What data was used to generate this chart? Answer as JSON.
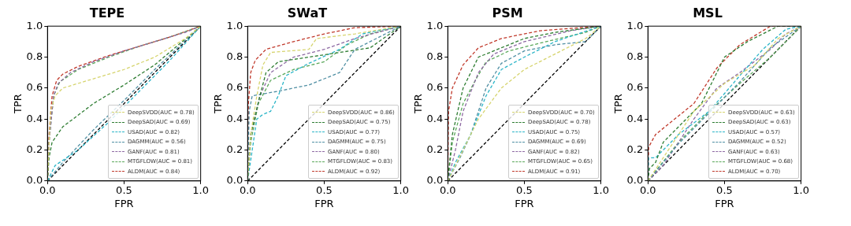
{
  "chart_data": [
    {
      "type": "line",
      "title": "TEPE",
      "xlabel": "FPR",
      "ylabel": "TPR",
      "xlim": [
        0,
        1
      ],
      "ylim": [
        0,
        1
      ],
      "xticks": [
        {
          "value": 0,
          "label": "0.0"
        },
        {
          "value": 0.5,
          "label": "0.5"
        },
        {
          "value": 1,
          "label": "1.0"
        }
      ],
      "yticks": [
        {
          "value": 0,
          "label": "0.0"
        },
        {
          "value": 0.2,
          "label": "0.2"
        },
        {
          "value": 0.4,
          "label": "0.4"
        },
        {
          "value": 0.6,
          "label": "0.6"
        },
        {
          "value": 0.8,
          "label": "0.8"
        },
        {
          "value": 1,
          "label": "1.0"
        }
      ],
      "grid": false,
      "legend": "bottom right",
      "marker": "none",
      "line_style": "dashed",
      "series": [
        {
          "name": "DeepSVDD(AUC = 0.78)",
          "color": "#d6d46e",
          "x": [
            0,
            0.02,
            0.05,
            0.1,
            0.3,
            0.5,
            0.7,
            0.9,
            1
          ],
          "values": [
            0,
            0.45,
            0.55,
            0.6,
            0.66,
            0.72,
            0.8,
            0.92,
            1
          ]
        },
        {
          "name": "DeepSAD(AUC = 0.69)",
          "color": "#2e7d32",
          "x": [
            0,
            0.01,
            0.03,
            0.1,
            0.3,
            0.5,
            0.7,
            1
          ],
          "values": [
            0,
            0.15,
            0.25,
            0.35,
            0.5,
            0.62,
            0.75,
            1
          ]
        },
        {
          "name": "USAD(AUC = 0.82)",
          "color": "#2bb5c8",
          "x": [
            0,
            0.05,
            0.2,
            0.4,
            0.6,
            0.8,
            1
          ],
          "values": [
            0,
            0.1,
            0.2,
            0.38,
            0.58,
            0.78,
            1
          ]
        },
        {
          "name": "DAGMM(AUC = 0.56)",
          "color": "#4f8fa3",
          "x": [
            0,
            0.1,
            0.3,
            0.5,
            0.7,
            1
          ],
          "values": [
            0,
            0.12,
            0.33,
            0.52,
            0.72,
            1
          ]
        },
        {
          "name": "GANF(AUC = 0.81)",
          "color": "#8e6aa3",
          "x": [
            0,
            0.01,
            0.04,
            0.07,
            0.15,
            0.3,
            0.5,
            0.7,
            0.9,
            1
          ],
          "values": [
            0,
            0.25,
            0.55,
            0.63,
            0.7,
            0.77,
            0.84,
            0.9,
            0.96,
            1
          ]
        },
        {
          "name": "MTGFLOW(AUC = 0.81)",
          "color": "#5aa85a",
          "x": [
            0,
            0.01,
            0.04,
            0.08,
            0.2,
            0.4,
            0.6,
            0.8,
            1
          ],
          "values": [
            0,
            0.25,
            0.55,
            0.64,
            0.72,
            0.8,
            0.87,
            0.93,
            1
          ]
        },
        {
          "name": "ALDM(AUC = 0.84)",
          "color": "#c0392b",
          "x": [
            0,
            0.01,
            0.03,
            0.06,
            0.1,
            0.2,
            0.4,
            0.6,
            0.8,
            1
          ],
          "values": [
            0,
            0.3,
            0.55,
            0.65,
            0.69,
            0.74,
            0.81,
            0.87,
            0.93,
            1
          ]
        },
        {
          "color": "#000000",
          "x": [
            0,
            1
          ],
          "values": [
            0,
            1
          ]
        }
      ]
    },
    {
      "type": "line",
      "title": "SWaT",
      "xlabel": "FPR",
      "ylabel": "TPR",
      "xlim": [
        0,
        1
      ],
      "ylim": [
        0,
        1
      ],
      "xticks": [
        {
          "value": 0,
          "label": "0.0"
        },
        {
          "value": 0.5,
          "label": "0.5"
        },
        {
          "value": 1,
          "label": "1.0"
        }
      ],
      "yticks": [
        {
          "value": 0,
          "label": "0.0"
        },
        {
          "value": 0.2,
          "label": "0.2"
        },
        {
          "value": 0.4,
          "label": "0.4"
        },
        {
          "value": 0.6,
          "label": "0.6"
        },
        {
          "value": 0.8,
          "label": "0.8"
        },
        {
          "value": 1,
          "label": "1.0"
        }
      ],
      "grid": false,
      "legend": "bottom right",
      "marker": "none",
      "line_style": "dashed",
      "series": [
        {
          "name": "DeepSVDD(AUC = 0.86)",
          "color": "#d6d46e",
          "x": [
            0,
            0.02,
            0.06,
            0.1,
            0.15,
            0.4,
            0.45,
            0.7,
            1
          ],
          "values": [
            0,
            0.3,
            0.55,
            0.75,
            0.83,
            0.85,
            0.92,
            0.95,
            1
          ]
        },
        {
          "name": "DeepSAD(AUC = 0.75)",
          "color": "#2e7d32",
          "x": [
            0,
            0.02,
            0.08,
            0.12,
            0.2,
            0.4,
            0.6,
            0.8,
            1
          ],
          "values": [
            0,
            0.3,
            0.55,
            0.7,
            0.77,
            0.8,
            0.83,
            0.86,
            1
          ]
        },
        {
          "name": "USAD(AUC = 0.77)",
          "color": "#2bb5c8",
          "x": [
            0,
            0.03,
            0.06,
            0.1,
            0.15,
            0.2,
            0.25,
            0.4,
            0.6,
            0.75,
            1
          ],
          "values": [
            0,
            0.2,
            0.4,
            0.43,
            0.45,
            0.55,
            0.68,
            0.76,
            0.85,
            0.95,
            1
          ]
        },
        {
          "name": "DAGMM(AUC = 0.75)",
          "color": "#4f8fa3",
          "x": [
            0,
            0.01,
            0.03,
            0.2,
            0.4,
            0.6,
            0.7,
            0.9,
            1
          ],
          "values": [
            0,
            0.45,
            0.55,
            0.58,
            0.62,
            0.7,
            0.85,
            0.95,
            1
          ]
        },
        {
          "name": "GANF(AUC = 0.80)",
          "color": "#8e6aa3",
          "x": [
            0,
            0.02,
            0.08,
            0.15,
            0.3,
            0.5,
            0.7,
            1
          ],
          "values": [
            0,
            0.3,
            0.55,
            0.7,
            0.8,
            0.85,
            0.92,
            1
          ]
        },
        {
          "name": "MTGFLOW(AUC = 0.83)",
          "color": "#5aa85a",
          "x": [
            0,
            0.02,
            0.07,
            0.15,
            0.3,
            0.5,
            0.65,
            0.8,
            1
          ],
          "values": [
            0,
            0.25,
            0.5,
            0.65,
            0.72,
            0.77,
            0.88,
            0.95,
            1
          ]
        },
        {
          "name": "ALDM(AUC = 0.92)",
          "color": "#c0392b",
          "x": [
            0,
            0.005,
            0.02,
            0.05,
            0.12,
            0.3,
            0.5,
            0.7,
            1
          ],
          "values": [
            0,
            0.5,
            0.7,
            0.78,
            0.85,
            0.9,
            0.95,
            0.99,
            1
          ]
        },
        {
          "color": "#000000",
          "x": [
            0,
            1
          ],
          "values": [
            0,
            1
          ]
        }
      ]
    },
    {
      "type": "line",
      "title": "PSM",
      "xlabel": "FPR",
      "ylabel": "TPR",
      "xlim": [
        0,
        1
      ],
      "ylim": [
        0,
        1
      ],
      "xticks": [
        {
          "value": 0,
          "label": "0.0"
        },
        {
          "value": 0.5,
          "label": "0.5"
        },
        {
          "value": 1,
          "label": "1.0"
        }
      ],
      "yticks": [
        {
          "value": 0,
          "label": "0.0"
        },
        {
          "value": 0.2,
          "label": "0.2"
        },
        {
          "value": 0.4,
          "label": "0.4"
        },
        {
          "value": 0.6,
          "label": "0.6"
        },
        {
          "value": 0.8,
          "label": "0.8"
        },
        {
          "value": 1,
          "label": "1.0"
        }
      ],
      "grid": false,
      "legend": "bottom right",
      "marker": "none",
      "line_style": "dashed",
      "series": [
        {
          "name": "DeepSVDD(AUC = 0.70)",
          "color": "#d6d46e",
          "x": [
            0,
            0.1,
            0.2,
            0.35,
            0.5,
            0.7,
            0.9,
            1
          ],
          "values": [
            0,
            0.2,
            0.4,
            0.6,
            0.72,
            0.82,
            0.92,
            1
          ]
        },
        {
          "name": "DeepSAD(AUC = 0.78)",
          "color": "#2e7d32",
          "x": [
            0,
            0.03,
            0.1,
            0.2,
            0.35,
            0.5,
            0.7,
            1
          ],
          "values": [
            0,
            0.3,
            0.6,
            0.8,
            0.86,
            0.92,
            0.96,
            1
          ]
        },
        {
          "name": "USAD(AUC = 0.75)",
          "color": "#2bb5c8",
          "x": [
            0,
            0.05,
            0.15,
            0.25,
            0.35,
            0.5,
            0.7,
            1
          ],
          "values": [
            0,
            0.12,
            0.3,
            0.55,
            0.72,
            0.8,
            0.9,
            1
          ]
        },
        {
          "name": "DAGMM(AUC = 0.69)",
          "color": "#4f8fa3",
          "x": [
            0,
            0.08,
            0.15,
            0.25,
            0.35,
            0.5,
            0.7,
            0.9,
            1
          ],
          "values": [
            0,
            0.15,
            0.3,
            0.6,
            0.76,
            0.84,
            0.88,
            0.9,
            1
          ]
        },
        {
          "name": "GANF(AUC = 0.82)",
          "color": "#8e6aa3",
          "x": [
            0,
            0.05,
            0.1,
            0.2,
            0.3,
            0.5,
            0.8,
            1
          ],
          "values": [
            0,
            0.2,
            0.45,
            0.7,
            0.82,
            0.9,
            0.97,
            1
          ]
        },
        {
          "name": "MTGFLOW(AUC = 0.65)",
          "color": "#5aa85a",
          "x": [
            0,
            0.03,
            0.1,
            0.18,
            0.25,
            0.4,
            0.6,
            0.9,
            1
          ],
          "values": [
            0,
            0.25,
            0.5,
            0.65,
            0.77,
            0.84,
            0.89,
            0.96,
            1
          ]
        },
        {
          "name": "ALDM(AUC = 0.91)",
          "color": "#c0392b",
          "x": [
            0,
            0.005,
            0.03,
            0.1,
            0.2,
            0.35,
            0.6,
            1
          ],
          "values": [
            0,
            0.45,
            0.6,
            0.75,
            0.86,
            0.92,
            0.97,
            1
          ]
        },
        {
          "color": "#000000",
          "x": [
            0,
            1
          ],
          "values": [
            0,
            1
          ]
        }
      ]
    },
    {
      "type": "line",
      "title": "MSL",
      "xlabel": "FPR",
      "ylabel": "TPR",
      "xlim": [
        0,
        1
      ],
      "ylim": [
        0,
        1
      ],
      "xticks": [
        {
          "value": 0,
          "label": "0.0"
        },
        {
          "value": 0.5,
          "label": "0.5"
        },
        {
          "value": 1,
          "label": "1.0"
        }
      ],
      "yticks": [
        {
          "value": 0,
          "label": "0.0"
        },
        {
          "value": 0.2,
          "label": "0.2"
        },
        {
          "value": 0.4,
          "label": "0.4"
        },
        {
          "value": 0.6,
          "label": "0.6"
        },
        {
          "value": 0.8,
          "label": "0.8"
        },
        {
          "value": 1,
          "label": "1.0"
        }
      ],
      "grid": false,
      "legend": "bottom right",
      "marker": "none",
      "line_style": "dashed",
      "series": [
        {
          "name": "DeepSVDD(AUC = 0.63)",
          "color": "#d6d46e",
          "x": [
            0,
            0.1,
            0.3,
            0.5,
            0.7,
            0.85,
            1
          ],
          "values": [
            0,
            0.15,
            0.45,
            0.63,
            0.75,
            0.92,
            1
          ]
        },
        {
          "name": "DeepSAD(AUC = 0.63)",
          "color": "#2e7d32",
          "x": [
            0,
            0.01,
            0.05,
            0.1,
            0.2,
            0.35,
            0.5,
            0.65,
            0.85,
            1
          ],
          "values": [
            0,
            0.08,
            0.12,
            0.25,
            0.35,
            0.5,
            0.8,
            0.9,
            1,
            1
          ]
        },
        {
          "name": "USAD(AUC = 0.57)",
          "color": "#2bb5c8",
          "x": [
            0,
            0.005,
            0.05,
            0.2,
            0.4,
            0.6,
            0.75,
            0.9,
            1
          ],
          "values": [
            0,
            0.15,
            0.15,
            0.3,
            0.45,
            0.68,
            0.85,
            0.98,
            1
          ]
        },
        {
          "name": "DAGMM(AUC = 0.52)",
          "color": "#4f8fa3",
          "x": [
            0,
            0.2,
            0.4,
            0.6,
            0.8,
            1
          ],
          "values": [
            0,
            0.24,
            0.44,
            0.64,
            0.86,
            1
          ]
        },
        {
          "name": "GANF(AUC = 0.63)",
          "color": "#8e6aa3",
          "x": [
            0,
            0.1,
            0.3,
            0.45,
            0.6,
            0.8,
            0.9,
            1
          ],
          "values": [
            0,
            0.1,
            0.4,
            0.6,
            0.7,
            0.85,
            0.95,
            1
          ]
        },
        {
          "name": "MTGFLOW(AUC = 0.68)",
          "color": "#5aa85a",
          "x": [
            0,
            0.2,
            0.4,
            0.6,
            0.8,
            1
          ],
          "values": [
            0,
            0.25,
            0.45,
            0.63,
            0.8,
            1
          ]
        },
        {
          "name": "ALDM(AUC = 0.70)",
          "color": "#c0392b",
          "x": [
            0,
            0.005,
            0.05,
            0.15,
            0.3,
            0.45,
            0.6,
            0.8,
            1
          ],
          "values": [
            0,
            0.22,
            0.3,
            0.38,
            0.5,
            0.73,
            0.88,
            1,
            1
          ]
        },
        {
          "color": "#000000",
          "x": [
            0,
            1
          ],
          "values": [
            0,
            1
          ]
        }
      ]
    }
  ]
}
